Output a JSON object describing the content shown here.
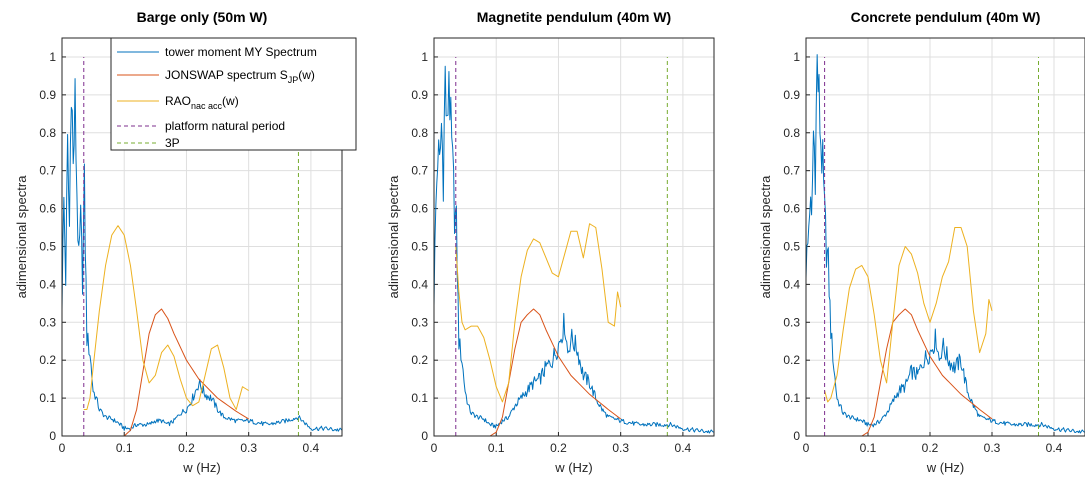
{
  "colors": {
    "spectrum": "#0072BD",
    "jonswap": "#D95319",
    "rao": "#EDB120",
    "natural_period": "#7E2F8E",
    "three_p": "#77AC30",
    "grid": "#dfdfdf",
    "axis": "#262626"
  },
  "chart_data": [
    {
      "type": "line",
      "title": "Barge only (50m W)",
      "xlabel": "w (Hz)",
      "ylabel": "adimensional spectra",
      "xlim": [
        0,
        0.45
      ],
      "ylim": [
        0,
        1.05
      ],
      "xticks": [
        "0",
        "0.1",
        "0.2",
        "0.3",
        "0.4"
      ],
      "yticks": [
        "0",
        "0.1",
        "0.2",
        "0.3",
        "0.4",
        "0.5",
        "0.6",
        "0.7",
        "0.8",
        "0.9",
        "1"
      ],
      "grid": true,
      "legend": {
        "placement": "top-right",
        "entries": [
          {
            "key": "spectrum",
            "text": "tower moment MY Spectrum"
          },
          {
            "key": "jonswap",
            "text": "JONSWAP spectrum S",
            "sub": "JP",
            "after": "(w)"
          },
          {
            "key": "rao",
            "text": "RAO",
            "sub": "nac acc",
            "after": "(w)"
          },
          {
            "key": "natural_period",
            "text": "platform natural period"
          },
          {
            "key": "three_p",
            "text": "3P"
          }
        ]
      },
      "series": [
        {
          "key": "spectrum",
          "style": "solid",
          "noisy": true,
          "x": [
            0,
            0.003,
            0.006,
            0.009,
            0.012,
            0.015,
            0.018,
            0.021,
            0.024,
            0.027,
            0.03,
            0.033,
            0.036,
            0.04,
            0.045,
            0.05,
            0.055,
            0.06,
            0.065,
            0.07,
            0.08,
            0.09,
            0.1,
            0.11,
            0.12,
            0.13,
            0.14,
            0.15,
            0.16,
            0.17,
            0.18,
            0.19,
            0.2,
            0.21,
            0.22,
            0.23,
            0.24,
            0.25,
            0.26,
            0.28,
            0.3,
            0.33,
            0.36,
            0.38,
            0.4,
            0.42,
            0.45
          ],
          "y": [
            0.36,
            0.62,
            0.42,
            0.75,
            0.55,
            0.98,
            0.7,
            0.87,
            0.65,
            0.45,
            0.56,
            0.42,
            0.65,
            0.26,
            0.22,
            0.12,
            0.1,
            0.07,
            0.06,
            0.05,
            0.045,
            0.035,
            0.02,
            0.02,
            0.03,
            0.03,
            0.03,
            0.04,
            0.04,
            0.03,
            0.04,
            0.06,
            0.07,
            0.1,
            0.14,
            0.11,
            0.1,
            0.07,
            0.05,
            0.04,
            0.04,
            0.03,
            0.04,
            0.05,
            0.02,
            0.02,
            0.015
          ]
        },
        {
          "key": "jonswap",
          "style": "solid",
          "noisy": false,
          "x": [
            0.1,
            0.11,
            0.12,
            0.13,
            0.14,
            0.15,
            0.16,
            0.17,
            0.18,
            0.2,
            0.22,
            0.25,
            0.28,
            0.3
          ],
          "y": [
            0,
            0.015,
            0.07,
            0.17,
            0.27,
            0.32,
            0.335,
            0.31,
            0.27,
            0.2,
            0.15,
            0.1,
            0.065,
            0.045
          ]
        },
        {
          "key": "rao",
          "style": "solid",
          "noisy": false,
          "x": [
            0.035,
            0.04,
            0.045,
            0.05,
            0.06,
            0.07,
            0.08,
            0.09,
            0.1,
            0.11,
            0.12,
            0.13,
            0.14,
            0.15,
            0.16,
            0.17,
            0.18,
            0.19,
            0.2,
            0.21,
            0.22,
            0.23,
            0.24,
            0.25,
            0.26,
            0.27,
            0.28,
            0.29,
            0.3
          ],
          "y": [
            0.07,
            0.07,
            0.1,
            0.18,
            0.33,
            0.45,
            0.53,
            0.555,
            0.53,
            0.45,
            0.33,
            0.2,
            0.14,
            0.16,
            0.22,
            0.24,
            0.21,
            0.15,
            0.1,
            0.08,
            0.09,
            0.16,
            0.23,
            0.24,
            0.18,
            0.1,
            0.07,
            0.13,
            0.12
          ]
        },
        {
          "key": "natural_period",
          "style": "dashed",
          "noisy": false,
          "x": [
            0.035,
            0.035
          ],
          "y": [
            0,
            1.0
          ]
        },
        {
          "key": "three_p",
          "style": "dashed",
          "noisy": false,
          "x": [
            0.38,
            0.38
          ],
          "y": [
            0,
            1.0
          ]
        }
      ]
    },
    {
      "type": "line",
      "title": "Magnetite pendulum (40m W)",
      "xlabel": "w (Hz)",
      "ylabel": "adimensional spectra",
      "xlim": [
        0,
        0.45
      ],
      "ylim": [
        0,
        1.05
      ],
      "xticks": [
        "0",
        "0.1",
        "0.2",
        "0.3",
        "0.4"
      ],
      "yticks": [
        "0",
        "0.1",
        "0.2",
        "0.3",
        "0.4",
        "0.5",
        "0.6",
        "0.7",
        "0.8",
        "0.9",
        "1"
      ],
      "grid": true,
      "legend": null,
      "series": [
        {
          "key": "spectrum",
          "style": "solid",
          "noisy": true,
          "x": [
            0,
            0.003,
            0.006,
            0.009,
            0.012,
            0.015,
            0.018,
            0.021,
            0.024,
            0.027,
            0.03,
            0.033,
            0.036,
            0.04,
            0.045,
            0.05,
            0.055,
            0.06,
            0.07,
            0.08,
            0.09,
            0.1,
            0.11,
            0.12,
            0.13,
            0.14,
            0.15,
            0.16,
            0.17,
            0.18,
            0.19,
            0.2,
            0.21,
            0.215,
            0.22,
            0.23,
            0.24,
            0.25,
            0.26,
            0.27,
            0.28,
            0.3,
            0.33,
            0.36,
            0.38,
            0.4,
            0.42,
            0.45
          ],
          "y": [
            0.37,
            0.6,
            0.75,
            0.7,
            0.82,
            0.7,
            0.95,
            0.78,
            0.98,
            0.8,
            0.7,
            0.6,
            0.55,
            0.25,
            0.2,
            0.12,
            0.08,
            0.06,
            0.05,
            0.045,
            0.03,
            0.025,
            0.04,
            0.05,
            0.08,
            0.1,
            0.12,
            0.14,
            0.15,
            0.18,
            0.2,
            0.24,
            0.3,
            0.22,
            0.26,
            0.23,
            0.16,
            0.14,
            0.1,
            0.07,
            0.05,
            0.04,
            0.03,
            0.03,
            0.03,
            0.02,
            0.015,
            0.01
          ]
        },
        {
          "key": "jonswap",
          "style": "solid",
          "noisy": false,
          "x": [
            0.09,
            0.1,
            0.11,
            0.12,
            0.13,
            0.14,
            0.15,
            0.16,
            0.17,
            0.18,
            0.2,
            0.22,
            0.25,
            0.28,
            0.3
          ],
          "y": [
            0,
            0.01,
            0.05,
            0.14,
            0.23,
            0.3,
            0.32,
            0.335,
            0.32,
            0.28,
            0.21,
            0.16,
            0.11,
            0.07,
            0.045
          ]
        },
        {
          "key": "rao",
          "style": "solid",
          "noisy": false,
          "x": [
            0.035,
            0.04,
            0.045,
            0.05,
            0.06,
            0.07,
            0.08,
            0.09,
            0.1,
            0.11,
            0.12,
            0.13,
            0.14,
            0.15,
            0.16,
            0.17,
            0.18,
            0.19,
            0.2,
            0.21,
            0.22,
            0.23,
            0.24,
            0.25,
            0.26,
            0.27,
            0.28,
            0.29,
            0.295,
            0.3
          ],
          "y": [
            0.5,
            0.38,
            0.3,
            0.28,
            0.29,
            0.29,
            0.26,
            0.2,
            0.13,
            0.09,
            0.14,
            0.3,
            0.42,
            0.49,
            0.52,
            0.51,
            0.47,
            0.43,
            0.42,
            0.48,
            0.54,
            0.54,
            0.47,
            0.56,
            0.55,
            0.44,
            0.3,
            0.29,
            0.38,
            0.34
          ]
        },
        {
          "key": "natural_period",
          "style": "dashed",
          "noisy": false,
          "x": [
            0.035,
            0.035
          ],
          "y": [
            0,
            1.0
          ]
        },
        {
          "key": "three_p",
          "style": "dashed",
          "noisy": false,
          "x": [
            0.375,
            0.375
          ],
          "y": [
            0,
            1.0
          ]
        }
      ]
    },
    {
      "type": "line",
      "title": "Concrete pendulum (40m W)",
      "xlabel": "w (Hz)",
      "ylabel": "adimensional spectra",
      "xlim": [
        0,
        0.45
      ],
      "ylim": [
        0,
        1.05
      ],
      "xticks": [
        "0",
        "0.1",
        "0.2",
        "0.3",
        "0.4"
      ],
      "yticks": [
        "0",
        "0.1",
        "0.2",
        "0.3",
        "0.4",
        "0.5",
        "0.6",
        "0.7",
        "0.8",
        "0.9",
        "1"
      ],
      "grid": true,
      "legend": null,
      "series": [
        {
          "key": "spectrum",
          "style": "solid",
          "noisy": true,
          "x": [
            0,
            0.003,
            0.006,
            0.009,
            0.012,
            0.015,
            0.018,
            0.021,
            0.024,
            0.027,
            0.03,
            0.033,
            0.036,
            0.04,
            0.045,
            0.05,
            0.055,
            0.06,
            0.07,
            0.08,
            0.09,
            0.1,
            0.11,
            0.12,
            0.13,
            0.14,
            0.15,
            0.16,
            0.17,
            0.18,
            0.19,
            0.2,
            0.21,
            0.215,
            0.22,
            0.23,
            0.24,
            0.25,
            0.26,
            0.27,
            0.28,
            0.3,
            0.33,
            0.36,
            0.38,
            0.4,
            0.42,
            0.45
          ],
          "y": [
            0.45,
            0.5,
            0.62,
            0.55,
            0.8,
            0.72,
            0.98,
            0.88,
            0.78,
            0.7,
            0.58,
            0.5,
            0.45,
            0.28,
            0.18,
            0.1,
            0.08,
            0.06,
            0.05,
            0.045,
            0.04,
            0.03,
            0.03,
            0.04,
            0.06,
            0.09,
            0.12,
            0.13,
            0.17,
            0.16,
            0.2,
            0.22,
            0.26,
            0.2,
            0.24,
            0.2,
            0.18,
            0.2,
            0.12,
            0.08,
            0.05,
            0.04,
            0.03,
            0.03,
            0.03,
            0.02,
            0.015,
            0.01
          ]
        },
        {
          "key": "jonswap",
          "style": "solid",
          "noisy": false,
          "x": [
            0.09,
            0.1,
            0.11,
            0.12,
            0.13,
            0.14,
            0.15,
            0.16,
            0.17,
            0.18,
            0.2,
            0.22,
            0.25,
            0.28,
            0.3
          ],
          "y": [
            0,
            0.01,
            0.05,
            0.14,
            0.23,
            0.3,
            0.32,
            0.335,
            0.32,
            0.28,
            0.21,
            0.16,
            0.11,
            0.07,
            0.045
          ]
        },
        {
          "key": "rao",
          "style": "solid",
          "noisy": false,
          "x": [
            0.03,
            0.035,
            0.04,
            0.05,
            0.06,
            0.07,
            0.08,
            0.09,
            0.1,
            0.11,
            0.12,
            0.13,
            0.14,
            0.15,
            0.16,
            0.17,
            0.18,
            0.19,
            0.2,
            0.21,
            0.22,
            0.23,
            0.24,
            0.25,
            0.26,
            0.27,
            0.28,
            0.29,
            0.295,
            0.3
          ],
          "y": [
            0.12,
            0.09,
            0.1,
            0.16,
            0.28,
            0.39,
            0.44,
            0.45,
            0.42,
            0.32,
            0.2,
            0.14,
            0.3,
            0.45,
            0.5,
            0.48,
            0.43,
            0.35,
            0.3,
            0.35,
            0.42,
            0.46,
            0.55,
            0.55,
            0.5,
            0.33,
            0.22,
            0.27,
            0.36,
            0.33
          ]
        },
        {
          "key": "natural_period",
          "style": "dashed",
          "noisy": false,
          "x": [
            0.03,
            0.03
          ],
          "y": [
            0,
            1.0
          ]
        },
        {
          "key": "three_p",
          "style": "dashed",
          "noisy": false,
          "x": [
            0.375,
            0.375
          ],
          "y": [
            0,
            1.0
          ]
        }
      ]
    }
  ]
}
